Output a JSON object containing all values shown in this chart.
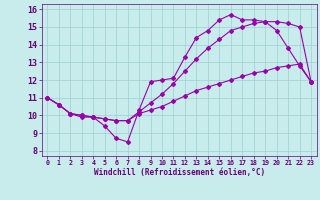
{
  "xlabel": "Windchill (Refroidissement éolien,°C)",
  "ylabel": "",
  "bg_color": "#c8ecec",
  "grid_color": "#9ecece",
  "line_color": "#9900aa",
  "xlim": [
    -0.5,
    23.5
  ],
  "ylim": [
    7.7,
    16.3
  ],
  "yticks": [
    8,
    9,
    10,
    11,
    12,
    13,
    14,
    15,
    16
  ],
  "xticks": [
    0,
    1,
    2,
    3,
    4,
    5,
    6,
    7,
    8,
    9,
    10,
    11,
    12,
    13,
    14,
    15,
    16,
    17,
    18,
    19,
    20,
    21,
    22,
    23
  ],
  "line1_x": [
    0,
    1,
    2,
    3,
    4,
    5,
    6,
    7,
    8,
    9,
    10,
    11,
    12,
    13,
    14,
    15,
    16,
    17,
    18,
    19,
    20,
    21,
    22,
    23
  ],
  "line1_y": [
    11.0,
    10.6,
    10.1,
    9.9,
    9.9,
    9.4,
    8.7,
    8.5,
    10.3,
    11.9,
    12.0,
    12.1,
    13.3,
    14.4,
    14.8,
    15.4,
    15.7,
    15.4,
    15.4,
    15.3,
    14.8,
    13.8,
    12.8,
    11.9
  ],
  "line2_x": [
    0,
    1,
    2,
    3,
    4,
    5,
    6,
    7,
    8,
    9,
    10,
    11,
    12,
    13,
    14,
    15,
    16,
    17,
    18,
    19,
    20,
    21,
    22,
    23
  ],
  "line2_y": [
    11.0,
    10.6,
    10.1,
    10.0,
    9.9,
    9.8,
    9.7,
    9.7,
    10.1,
    10.3,
    10.5,
    10.8,
    11.1,
    11.4,
    11.6,
    11.8,
    12.0,
    12.2,
    12.4,
    12.5,
    12.7,
    12.8,
    12.9,
    11.9
  ],
  "line3_x": [
    0,
    1,
    2,
    3,
    4,
    5,
    6,
    7,
    8,
    9,
    10,
    11,
    12,
    13,
    14,
    15,
    16,
    17,
    18,
    19,
    20,
    21,
    22,
    23
  ],
  "line3_y": [
    11.0,
    10.6,
    10.1,
    10.0,
    9.9,
    9.8,
    9.7,
    9.7,
    10.2,
    10.7,
    11.2,
    11.8,
    12.5,
    13.2,
    13.8,
    14.3,
    14.8,
    15.0,
    15.2,
    15.3,
    15.3,
    15.2,
    15.0,
    11.9
  ],
  "xlabel_fontsize": 5.5,
  "ytick_fontsize": 6.0,
  "xtick_fontsize": 4.8,
  "marker_size": 2.0,
  "line_width": 0.8
}
